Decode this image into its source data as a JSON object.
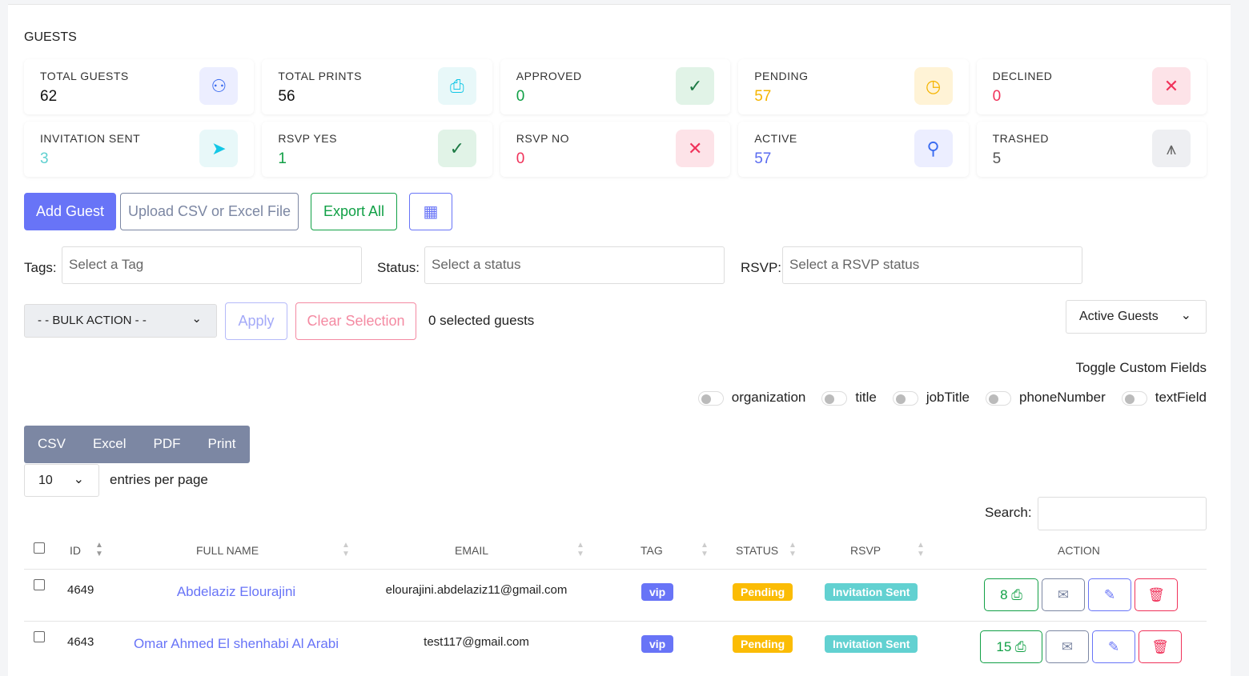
{
  "page_title": "GUESTS",
  "stats": [
    {
      "label": "TOTAL GUESTS",
      "value": "62",
      "icon": "users-icon",
      "color": "#111111",
      "bg": "#eceeff",
      "ic": "#3b6cf0"
    },
    {
      "label": "TOTAL PRINTS",
      "value": "56",
      "icon": "printer-icon",
      "color": "#111111",
      "bg": "#e8f8f9",
      "ic": "#13c7e6"
    },
    {
      "label": "APPROVED",
      "value": "0",
      "icon": "check-icon",
      "color": "#11a046",
      "bg": "#e1f3e7",
      "ic": "#1d7a45"
    },
    {
      "label": "PENDING",
      "value": "57",
      "icon": "clock-icon",
      "color": "#f5b400",
      "bg": "#fff3d6",
      "ic": "#f5b400"
    },
    {
      "label": "DECLINED",
      "value": "0",
      "icon": "x-icon",
      "color": "#f0325a",
      "bg": "#fde3e8",
      "ic": "#f0325a"
    },
    {
      "label": "INVITATION SENT",
      "value": "3",
      "icon": "send-icon",
      "color": "#5fd0d0",
      "bg": "#e8f8f9",
      "ic": "#13c7e6"
    },
    {
      "label": "RSVP YES",
      "value": "1",
      "icon": "check-icon",
      "color": "#11a046",
      "bg": "#e1f3e7",
      "ic": "#1d7a45"
    },
    {
      "label": "RSVP NO",
      "value": "0",
      "icon": "x-icon",
      "color": "#f0325a",
      "bg": "#fde3e8",
      "ic": "#f0325a"
    },
    {
      "label": "ACTIVE",
      "value": "57",
      "icon": "user-icon",
      "color": "#5a6cf0",
      "bg": "#eceeff",
      "ic": "#3b6cf0"
    },
    {
      "label": "TRASHED",
      "value": "5",
      "icon": "trash-icon",
      "color": "#555555",
      "bg": "#eeeff2",
      "ic": "#666666"
    }
  ],
  "toolbar": {
    "add_guest": "Add Guest",
    "upload": "Upload CSV or Excel File",
    "export_all": "Export All",
    "qr": "qr-code-icon"
  },
  "filters": {
    "tags_label": "Tags:",
    "tags_placeholder": "Select a Tag",
    "status_label": "Status:",
    "status_placeholder": "Select a status",
    "rsvp_label": "RSVP:",
    "rsvp_placeholder": "Select a RSVP status"
  },
  "bulk": {
    "select": "- - BULK ACTION - -",
    "apply": "Apply",
    "clear": "Clear Selection",
    "selected": "0 selected guests",
    "view": "Active Guests"
  },
  "custom_fields": {
    "title": "Toggle Custom Fields",
    "fields": [
      "organization",
      "title",
      "jobTitle",
      "phoneNumber",
      "textField"
    ]
  },
  "export_buttons": [
    "CSV",
    "Excel",
    "PDF",
    "Print"
  ],
  "entries": {
    "value": "10",
    "label": "entries per page"
  },
  "search": {
    "label": "Search:",
    "value": ""
  },
  "table": {
    "columns": [
      "ID",
      "FULL NAME",
      "EMAIL",
      "TAG",
      "STATUS",
      "RSVP",
      "ACTION"
    ],
    "rows": [
      {
        "id": "4649",
        "name": "Abdelaziz Elourajini",
        "email": "elourajini.abdelaziz11@gmail.com",
        "tag": "vip",
        "status": "Pending",
        "rsvp": "Invitation Sent",
        "prints": "8"
      },
      {
        "id": "4643",
        "name": "Omar Ahmed El shenhabi Al Arabi",
        "email": "test117@gmail.com",
        "tag": "vip",
        "status": "Pending",
        "rsvp": "Invitation Sent",
        "prints": "15"
      }
    ]
  },
  "colors": {
    "primary": "#6874f7",
    "success": "#11a046",
    "danger": "#f0325a",
    "warning": "#fbbc05",
    "info": "#62d1d1",
    "slate": "#7c87a3"
  }
}
